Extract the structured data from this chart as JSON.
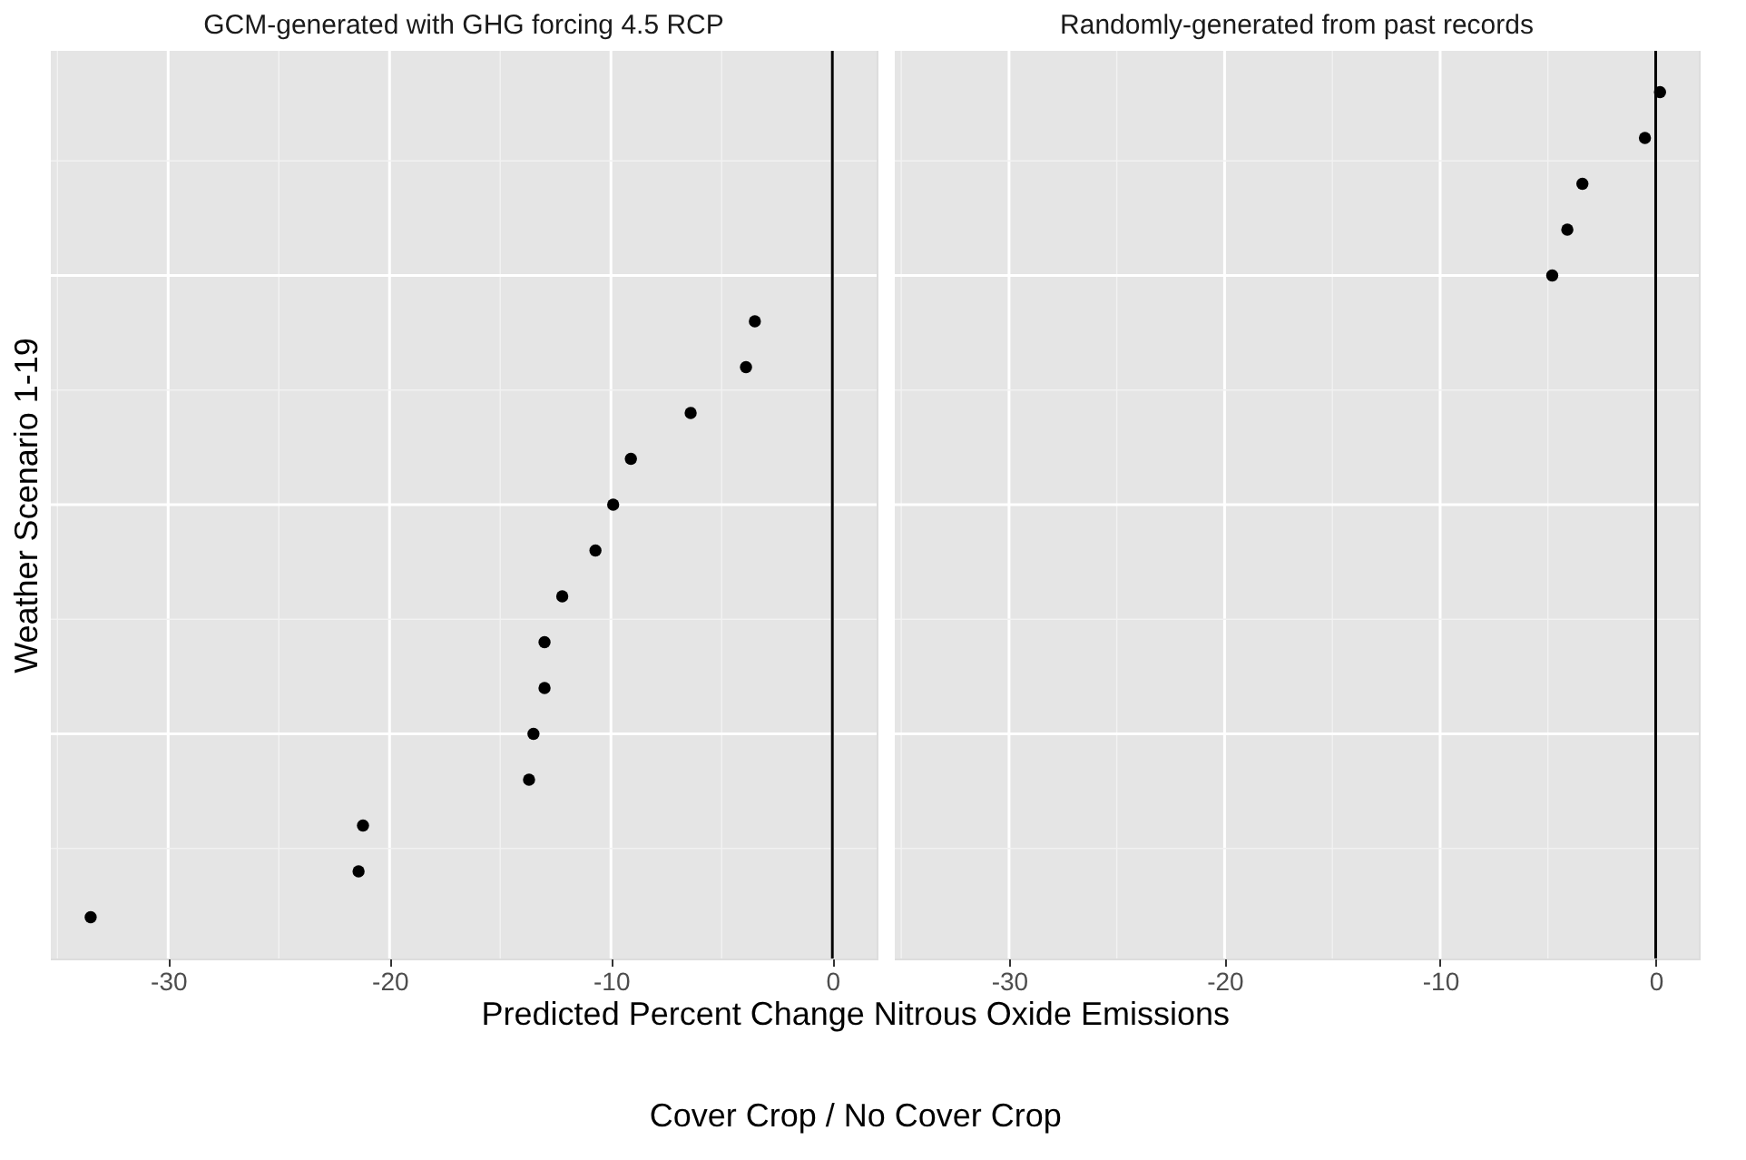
{
  "chart_data": [
    {
      "type": "scatter",
      "orientation": "horizontal",
      "title": "GCM-generated with GHG forcing 4.5 RCP",
      "ylabel": "Weather Scenario 1-19",
      "xlabel": "Predicted Percent Change Nitrous Oxide Emissions",
      "annotations": [
        "Cover Crop / No Cover Crop"
      ],
      "categories": [
        null,
        null,
        null,
        null,
        null,
        null,
        null,
        null,
        null,
        null,
        null,
        null,
        null,
        null,
        null,
        null,
        null,
        null,
        null
      ],
      "series": [
        {
          "color": "#000000",
          "values": [
            null,
            null,
            null,
            null,
            null,
            -3.5,
            -3.9,
            -6.4,
            -9.1,
            -9.9,
            -10.7,
            -12.2,
            -13.0,
            -13.0,
            -13.5,
            -13.7,
            -21.2,
            -21.4,
            -33.5
          ]
        }
      ],
      "xlim": [
        -35.3,
        2.0
      ],
      "xticks": [
        -30,
        -20,
        -10,
        0
      ],
      "grid": true,
      "marker": "circle",
      "tick_labels": "x",
      "ref_lines": [
        {
          "axis": "x",
          "value": 0,
          "color": "#000000"
        }
      ]
    },
    {
      "type": "scatter",
      "orientation": "horizontal",
      "title": "Randomly-generated from past records",
      "categories": [
        null,
        null,
        null,
        null,
        null,
        null,
        null,
        null,
        null,
        null,
        null,
        null,
        null,
        null,
        null,
        null,
        null,
        null,
        null
      ],
      "series": [
        {
          "color": "#000000",
          "values": [
            0.2,
            -0.5,
            -3.4,
            -4.1,
            -4.8,
            null,
            null,
            null,
            null,
            null,
            null,
            null,
            null,
            null,
            null,
            null,
            null,
            null,
            null
          ]
        }
      ],
      "xlim": [
        -35.3,
        2.0
      ],
      "xticks": [
        -30,
        -20,
        -10,
        0
      ],
      "grid": true,
      "marker": "circle",
      "tick_labels": "x",
      "ref_lines": [
        {
          "axis": "x",
          "value": 0,
          "color": "#000000"
        }
      ]
    }
  ]
}
